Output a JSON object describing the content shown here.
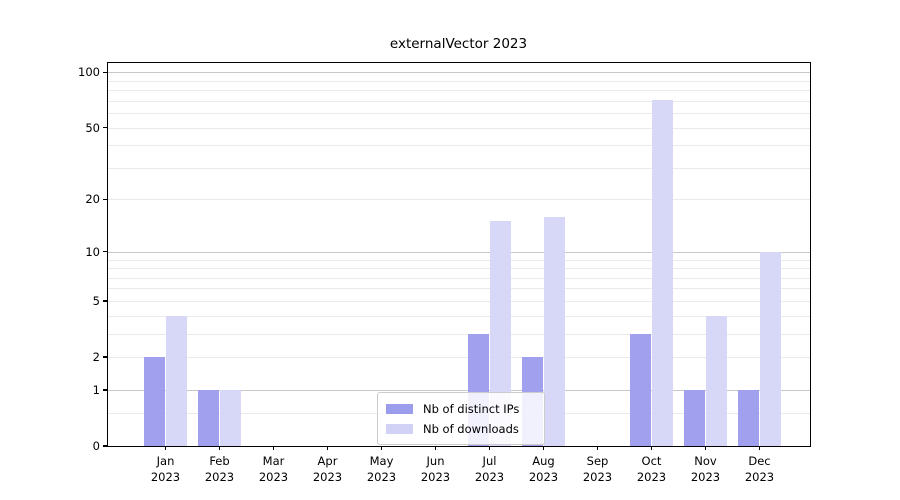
{
  "chart_data": {
    "type": "bar",
    "title": "externalVector 2023",
    "categories": [
      "Jan",
      "Feb",
      "Mar",
      "Apr",
      "May",
      "Jun",
      "Jul",
      "Aug",
      "Sep",
      "Oct",
      "Nov",
      "Dec"
    ],
    "year_label": "2023",
    "series": [
      {
        "name": "Nb of distinct IPs",
        "color": "#a0a0ee",
        "values": [
          2,
          1,
          0,
          0,
          0,
          0,
          3,
          2,
          0,
          3,
          1,
          1
        ]
      },
      {
        "name": "Nb of downloads",
        "color": "#d7d7f8",
        "values": [
          4,
          1,
          0,
          0,
          0,
          0,
          15,
          16,
          0,
          71,
          4,
          10
        ]
      }
    ],
    "scale": "log1p",
    "y_ticks": [
      100,
      50,
      20,
      10,
      5,
      2,
      1,
      0
    ],
    "ylim": [
      0,
      112
    ],
    "grid": true,
    "legend_position": "lower center",
    "legend_colors": [
      "#9c9ced",
      "#d2d2f6"
    ],
    "axis_color": "#000000",
    "major_grid_color": "#c8c8c8",
    "minor_grid_color": "#eaeaea"
  }
}
